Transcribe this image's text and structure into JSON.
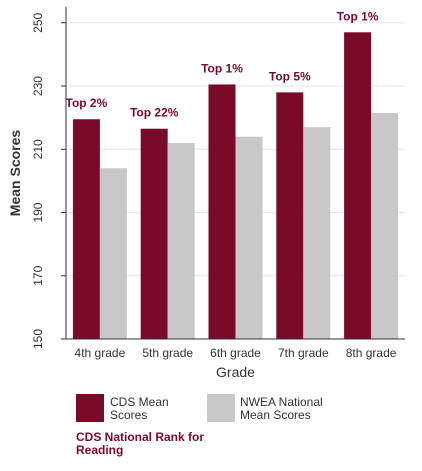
{
  "chart_data": {
    "type": "bar",
    "categories": [
      "4th grade",
      "5th grade",
      "6th grade",
      "7th grade",
      "8th grade"
    ],
    "series": [
      {
        "name": "CDS Mean Scores",
        "values": [
          219.5,
          216.5,
          230.5,
          228,
          247
        ]
      },
      {
        "name": "NWEA National Mean Scores",
        "values": [
          204,
          212,
          214,
          217,
          221.5
        ]
      }
    ],
    "rank_labels": [
      "Top 2%",
      "Top 22%",
      "Top 1%",
      "Top 5%",
      "Top 1%"
    ],
    "xlabel": "Grade",
    "ylabel": "Mean Scores",
    "ylim": [
      150,
      255
    ],
    "yticks": [
      150,
      170,
      190,
      210,
      230,
      250
    ],
    "grid": true,
    "legend_position": "bottom"
  },
  "legend": {
    "cds_label": "CDS Mean Scores",
    "nwea_label": "NWEA National Mean Scores",
    "rank_note": "CDS National Rank for Reading"
  },
  "colors": {
    "cds": "#7a0a2a",
    "nwea": "#c8c8c8",
    "rank_text": "#7a0a2a",
    "grid": "#e6e6e6",
    "axis": "#333333"
  }
}
